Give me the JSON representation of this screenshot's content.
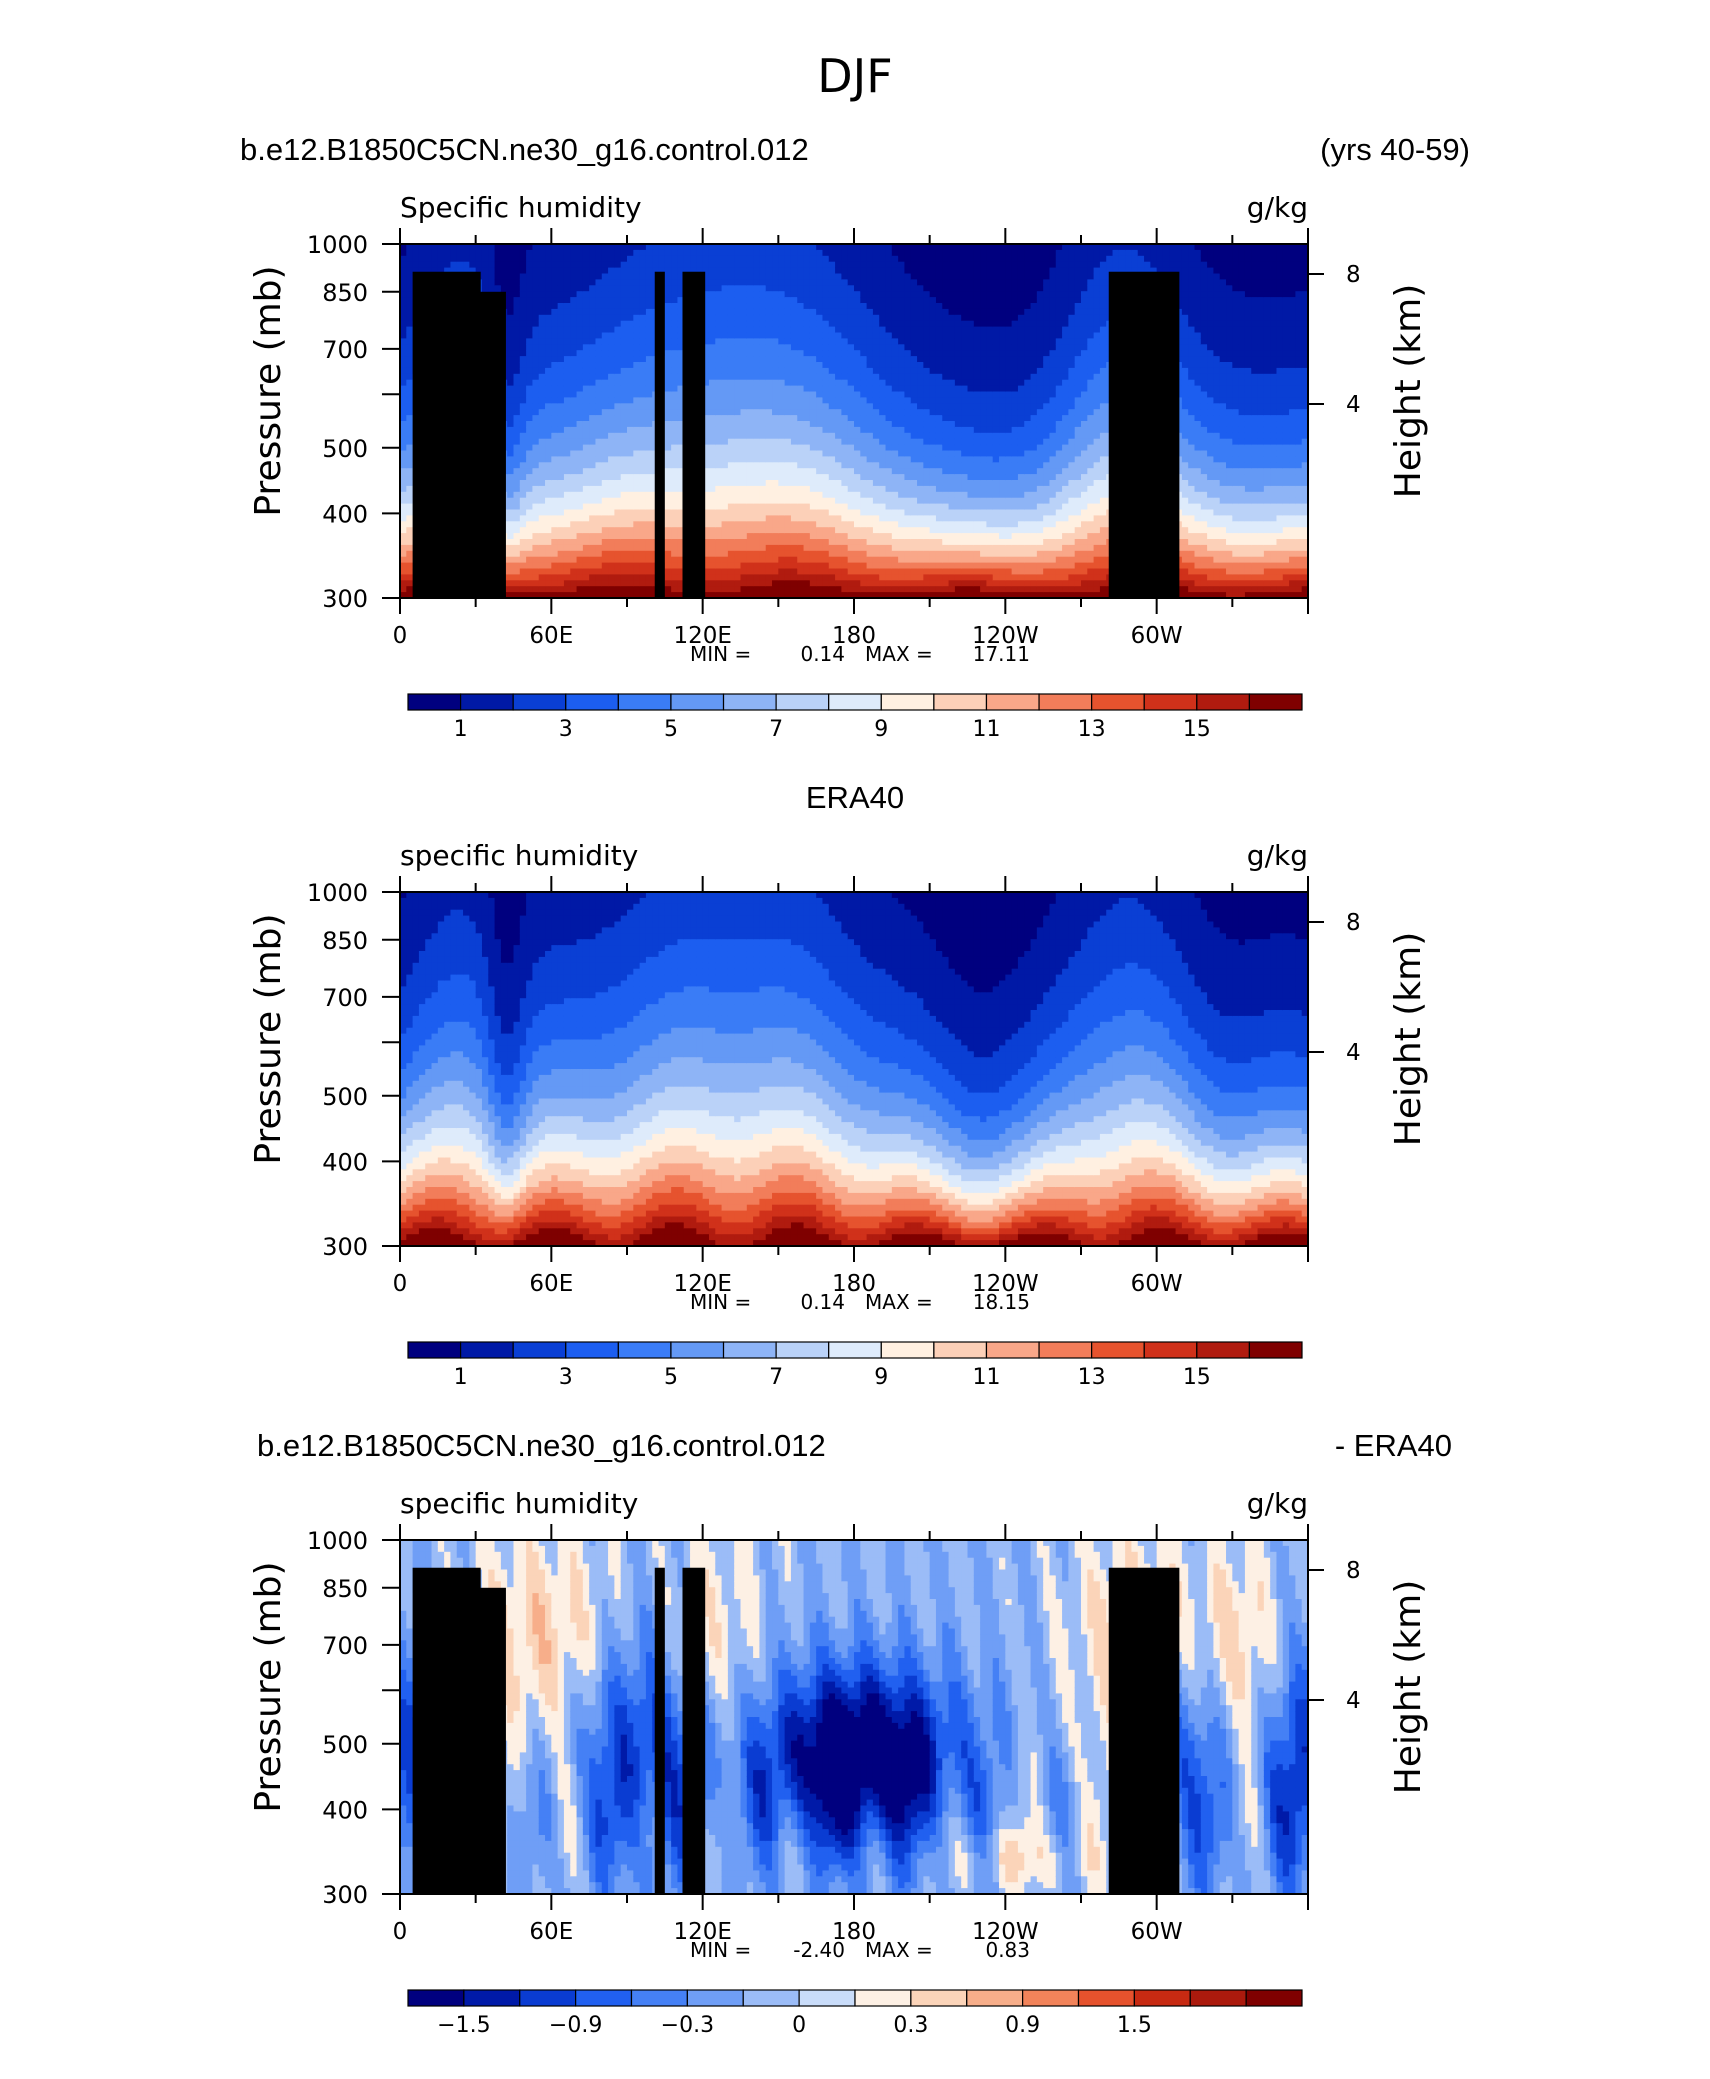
{
  "page": {
    "title": "DJF"
  },
  "chart_data": [
    {
      "type": "heatmap",
      "header_left": "b.e12.B1850C5CN.ne30_g16.control.012",
      "header_right": "(yrs 40-59)",
      "title": "Specific humidity",
      "units": "g/kg",
      "xlabel": "",
      "ylabel": "Pressure (mb)",
      "ylabel_right": "Height (km)",
      "x_tick_labels": [
        "0",
        "60E",
        "120E",
        "180",
        "120W",
        "60W"
      ],
      "y_tick_labels": [
        "300",
        "400",
        "500",
        "700",
        "850",
        "1000"
      ],
      "y_ticks_mb": [
        300,
        400,
        500,
        600,
        700,
        850,
        1000
      ],
      "y_right_tick_labels": [
        "8",
        "4"
      ],
      "y_right_ticks_km": [
        8,
        4
      ],
      "xlim": [
        0,
        360
      ],
      "ylim_mb": [
        1000,
        300
      ],
      "min_label": "MIN =",
      "min": "0.14",
      "max_label": "MAX =",
      "max": "17.11",
      "colorbar_labels": [
        "1",
        "3",
        "5",
        "7",
        "9",
        "11",
        "13",
        "15"
      ],
      "colorbar_levels": [
        1,
        2,
        3,
        4,
        5,
        6,
        7,
        8,
        9,
        10,
        11,
        12,
        13,
        14,
        15
      ],
      "terrain_mask": true,
      "field": "model"
    },
    {
      "type": "heatmap",
      "header_center": "ERA40",
      "title": "specific humidity",
      "units": "g/kg",
      "xlabel": "",
      "ylabel": "Pressure (mb)",
      "ylabel_right": "Height (km)",
      "x_tick_labels": [
        "0",
        "60E",
        "120E",
        "180",
        "120W",
        "60W"
      ],
      "y_tick_labels": [
        "300",
        "400",
        "500",
        "700",
        "850",
        "1000"
      ],
      "y_ticks_mb": [
        300,
        400,
        500,
        600,
        700,
        850,
        1000
      ],
      "y_right_tick_labels": [
        "8",
        "4"
      ],
      "y_right_ticks_km": [
        8,
        4
      ],
      "xlim": [
        0,
        360
      ],
      "ylim_mb": [
        1000,
        300
      ],
      "min_label": "MIN =",
      "min": "0.14",
      "max_label": "MAX =",
      "max": "18.15",
      "colorbar_labels": [
        "1",
        "3",
        "5",
        "7",
        "9",
        "11",
        "13",
        "15"
      ],
      "colorbar_levels": [
        1,
        2,
        3,
        4,
        5,
        6,
        7,
        8,
        9,
        10,
        11,
        12,
        13,
        14,
        15
      ],
      "terrain_mask": false,
      "field": "obs"
    },
    {
      "type": "heatmap",
      "header_left": "b.e12.B1850C5CN.ne30_g16.control.012",
      "header_right": "- ERA40",
      "title": "specific humidity",
      "units": "g/kg",
      "xlabel": "",
      "ylabel": "Pressure (mb)",
      "ylabel_right": "Height (km)",
      "x_tick_labels": [
        "0",
        "60E",
        "120E",
        "180",
        "120W",
        "60W"
      ],
      "y_tick_labels": [
        "300",
        "400",
        "500",
        "700",
        "850",
        "1000"
      ],
      "y_ticks_mb": [
        300,
        400,
        500,
        600,
        700,
        850,
        1000
      ],
      "y_right_tick_labels": [
        "8",
        "4"
      ],
      "y_right_ticks_km": [
        8,
        4
      ],
      "xlim": [
        0,
        360
      ],
      "ylim_mb": [
        1000,
        300
      ],
      "min_label": "MIN =",
      "min": "-2.40",
      "max_label": "MAX =",
      "max": "0.83",
      "colorbar_labels": [
        "−1.5",
        "−0.9",
        "−0.3",
        "0",
        "0.3",
        "0.9",
        "1.5"
      ],
      "colorbar_levels": [
        -1.8,
        -1.5,
        -1.2,
        -0.9,
        -0.6,
        -0.3,
        0,
        0.3,
        0.6,
        0.9,
        1.2,
        1.5,
        1.8
      ],
      "terrain_mask": true,
      "field": "diff"
    }
  ],
  "colors": {
    "palette": [
      "#00007f",
      "#0019a6",
      "#0a3fd4",
      "#1c5ef0",
      "#3a7cf6",
      "#6499f5",
      "#8eb4f6",
      "#bad2f8",
      "#deebfb",
      "#fff0e1",
      "#fcd0b8",
      "#f9a789",
      "#f27d5a",
      "#e6532e",
      "#d0311a",
      "#b01b0f",
      "#7f0000"
    ],
    "diff_palette": [
      "#00007f",
      "#001aa8",
      "#0a3cd2",
      "#2160f0",
      "#4580f5",
      "#6f9ef6",
      "#9bbcf7",
      "#c9dcf9",
      "#fdf0e4",
      "#fbd4b9",
      "#f7ae8a",
      "#f2835a",
      "#e6522d",
      "#c72a12",
      "#7f0000"
    ],
    "terrain": "#000000"
  }
}
